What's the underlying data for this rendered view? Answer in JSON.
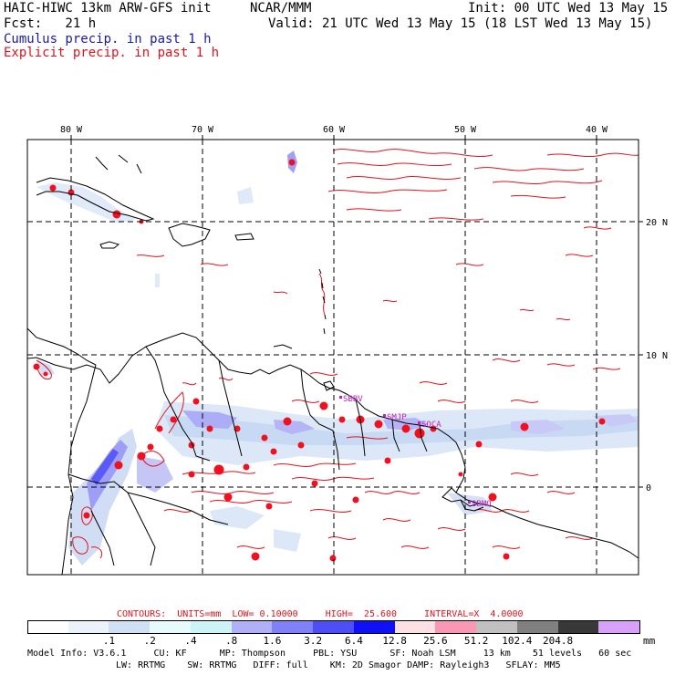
{
  "header": {
    "left1": "HAIC-HIWC 13km ARW-GFS init",
    "mid1": "NCAR/MMM",
    "right1": "Init: 00 UTC Wed 13 May 15",
    "left2": "Fcst:   21 h",
    "right2": "Valid: 21 UTC Wed 13 May 15 (18 LST Wed 13 May 15)",
    "cumulus": "Cumulus precip. in past 1 h",
    "explicit": "Explicit precip. in past 1 h"
  },
  "map": {
    "lon_labels": [
      "80 W",
      "70 W",
      "60 W",
      "50 W",
      "40 W"
    ],
    "lat_labels": [
      "20 N",
      "10 N",
      "0"
    ],
    "stations": [
      "SBBV",
      "SMJP",
      "SOCA",
      "SBMQ"
    ]
  },
  "contours": {
    "label": "CONTOURS:  UNITS=mm  LOW= 0.10000     HIGH=  25.600     INTERVAL=X  4.0000"
  },
  "colorbar": {
    "ticks": [
      ".1",
      ".2",
      ".4",
      ".8",
      "1.6",
      "3.2",
      "6.4",
      "12.8",
      "25.6",
      "51.2",
      "102.4",
      "204.8"
    ],
    "unit": "mm",
    "colors": [
      "#ffffff",
      "#ecf2fa",
      "#d0e0f4",
      "#e8fbfc",
      "#cbf3f8",
      "#b0b0f8",
      "#8080f8",
      "#4e4ef8",
      "#1010f8",
      "#fce0e4",
      "#f898b4",
      "#c0c0c0",
      "#808080",
      "#383838",
      "#d8a0f8"
    ]
  },
  "model_info": {
    "line1": "Model Info: V3.6.1     CU: KF      MP: Thompson     PBL: YSU      SF: Noah LSM     13 km    51 levels   60 sec",
    "line2": "LW: RRTMG    SW: RRTMG   DIFF: full    KM: 2D Smagor DAMP: Rayleigh3   SFLAY: MM5"
  }
}
